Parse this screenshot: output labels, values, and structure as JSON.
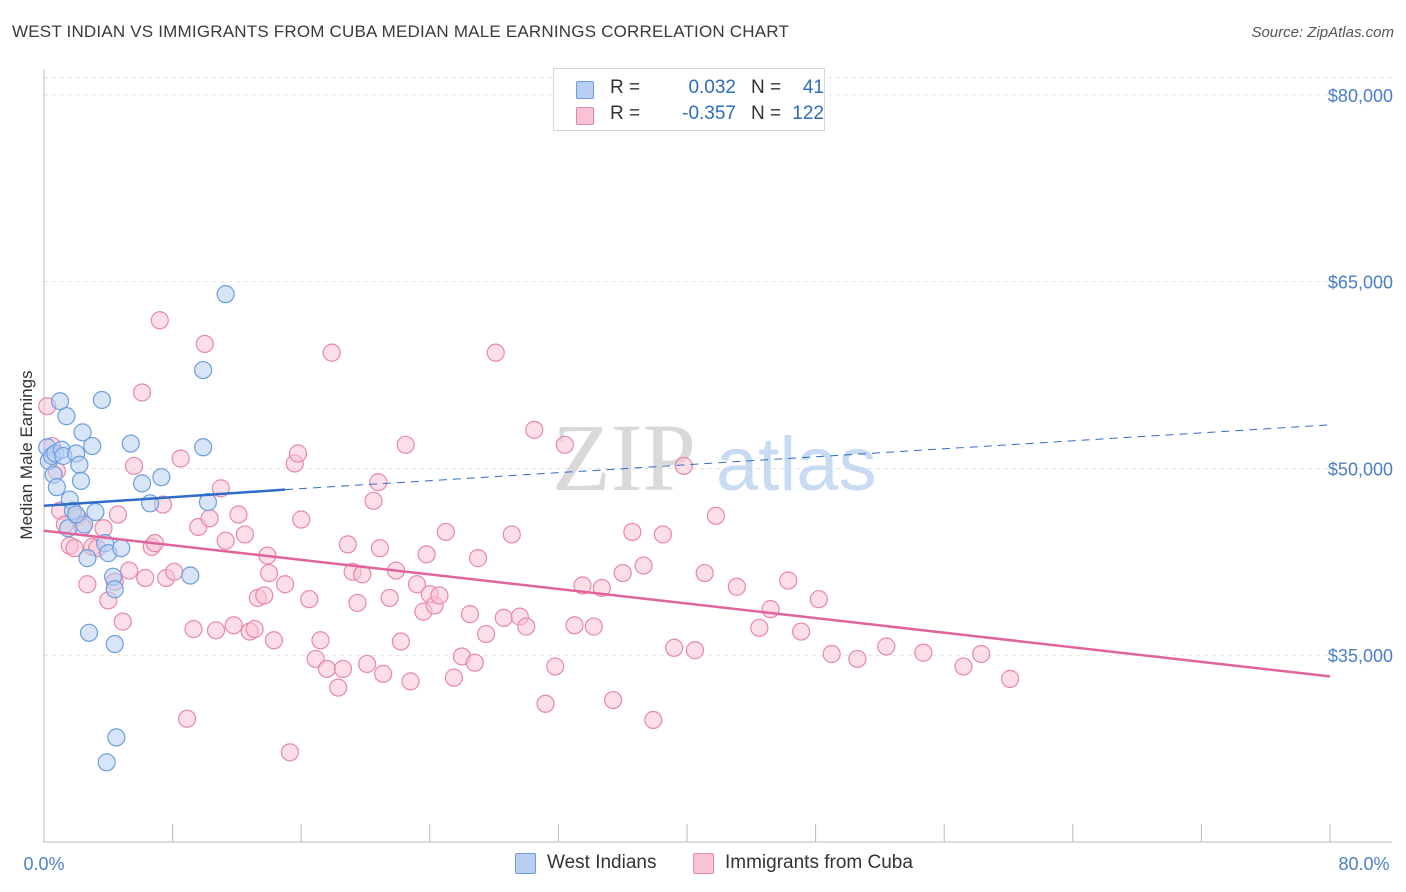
{
  "title": "WEST INDIAN VS IMMIGRANTS FROM CUBA MEDIAN MALE EARNINGS CORRELATION CHART",
  "source": "Source: ZipAtlas.com",
  "watermark": {
    "zip": "ZIP",
    "atlas": "atlas"
  },
  "colors": {
    "blue_fill": "#b7d0f1",
    "blue_stroke": "#6c9ee0",
    "blue_line": "#2f6cc8",
    "pink_fill": "#f8c3d3",
    "pink_stroke": "#e888a8",
    "pink_line": "#e0649a",
    "tick_text": "#4a7fc8",
    "grid": "#e3e3e3"
  },
  "legend": [
    {
      "r_label": "R =",
      "r_value": "0.032",
      "n_label": "N =",
      "n_value": "41"
    },
    {
      "r_label": "R =",
      "r_value": "-0.357",
      "n_label": "N =",
      "n_value": "122"
    }
  ],
  "series_labels": [
    "West Indians",
    "Immigrants from Cuba"
  ],
  "chart_data": {
    "type": "scatter",
    "title": "WEST INDIAN VS IMMIGRANTS FROM CUBA MEDIAN MALE EARNINGS CORRELATION CHART",
    "xlabel": "",
    "ylabel": "Median Male Earnings",
    "xlim": [
      0,
      80
    ],
    "ylim": [
      20000,
      82000
    ],
    "x_tick_labels": [
      "0.0%",
      "80.0%"
    ],
    "y_ticks": [
      35000,
      50000,
      65000,
      80000
    ],
    "y_tick_labels": [
      "$35,000",
      "$50,000",
      "$65,000",
      "$80,000"
    ],
    "grid": true,
    "series": [
      {
        "name": "West Indians",
        "r": 0.032,
        "n": 41,
        "trend": {
          "solid": [
            [
              0,
              47000
            ],
            [
              15,
              48300
            ]
          ],
          "dashed": [
            [
              15,
              48300
            ],
            [
              80,
              53500
            ]
          ]
        },
        "points": [
          [
            0.2,
            51700
          ],
          [
            0.3,
            50600
          ],
          [
            0.5,
            51000
          ],
          [
            0.6,
            49500
          ],
          [
            0.7,
            51200
          ],
          [
            0.8,
            48500
          ],
          [
            1.0,
            55400
          ],
          [
            1.1,
            51500
          ],
          [
            1.2,
            51000
          ],
          [
            1.4,
            54200
          ],
          [
            1.5,
            45200
          ],
          [
            1.6,
            47500
          ],
          [
            1.8,
            46600
          ],
          [
            2.0,
            51200
          ],
          [
            2.2,
            50300
          ],
          [
            2.3,
            49000
          ],
          [
            2.4,
            52900
          ],
          [
            2.5,
            45500
          ],
          [
            2.7,
            42800
          ],
          [
            2.8,
            36800
          ],
          [
            3.0,
            51800
          ],
          [
            3.2,
            46500
          ],
          [
            3.6,
            55500
          ],
          [
            3.8,
            44000
          ],
          [
            4.0,
            43200
          ],
          [
            4.3,
            41300
          ],
          [
            4.4,
            40300
          ],
          [
            4.8,
            43600
          ],
          [
            4.4,
            35900
          ],
          [
            5.4,
            52000
          ],
          [
            6.1,
            48800
          ],
          [
            4.5,
            28400
          ],
          [
            3.9,
            26400
          ],
          [
            7.3,
            49300
          ],
          [
            9.1,
            41400
          ],
          [
            9.9,
            51700
          ],
          [
            10.2,
            47300
          ],
          [
            9.9,
            57900
          ],
          [
            11.3,
            64000
          ],
          [
            6.6,
            47200
          ],
          [
            2.0,
            46300
          ]
        ]
      },
      {
        "name": "Immigrants from Cuba",
        "r": -0.357,
        "n": 122,
        "trend": {
          "solid": [
            [
              0,
              45000
            ],
            [
              80,
              33300
            ]
          ]
        },
        "points": [
          [
            0.2,
            55000
          ],
          [
            0.5,
            51800
          ],
          [
            0.8,
            49800
          ],
          [
            1.0,
            46600
          ],
          [
            1.3,
            45500
          ],
          [
            1.6,
            43800
          ],
          [
            1.9,
            43600
          ],
          [
            2.1,
            46100
          ],
          [
            2.4,
            45300
          ],
          [
            2.7,
            40700
          ],
          [
            3.0,
            43700
          ],
          [
            3.3,
            43600
          ],
          [
            3.7,
            45200
          ],
          [
            4.0,
            39400
          ],
          [
            4.4,
            40900
          ],
          [
            4.6,
            46300
          ],
          [
            4.9,
            37700
          ],
          [
            5.3,
            41800
          ],
          [
            5.6,
            50200
          ],
          [
            6.1,
            56100
          ],
          [
            6.3,
            41200
          ],
          [
            6.7,
            43700
          ],
          [
            6.9,
            44000
          ],
          [
            7.2,
            61900
          ],
          [
            7.6,
            41200
          ],
          [
            8.1,
            41700
          ],
          [
            8.5,
            50800
          ],
          [
            8.9,
            29900
          ],
          [
            9.3,
            37100
          ],
          [
            9.6,
            45300
          ],
          [
            10.0,
            60000
          ],
          [
            10.3,
            46000
          ],
          [
            10.7,
            37000
          ],
          [
            11.0,
            48400
          ],
          [
            11.3,
            44200
          ],
          [
            11.8,
            37400
          ],
          [
            12.1,
            46300
          ],
          [
            12.5,
            44700
          ],
          [
            12.8,
            36900
          ],
          [
            13.1,
            37100
          ],
          [
            13.3,
            39600
          ],
          [
            13.7,
            39800
          ],
          [
            14.0,
            41600
          ],
          [
            14.3,
            36200
          ],
          [
            15.0,
            40700
          ],
          [
            15.3,
            27200
          ],
          [
            15.6,
            50400
          ],
          [
            15.8,
            51200
          ],
          [
            16.0,
            45900
          ],
          [
            16.5,
            39500
          ],
          [
            16.9,
            34700
          ],
          [
            17.2,
            36200
          ],
          [
            17.6,
            33900
          ],
          [
            17.9,
            59300
          ],
          [
            18.3,
            32400
          ],
          [
            18.6,
            33900
          ],
          [
            18.9,
            43900
          ],
          [
            19.2,
            41700
          ],
          [
            19.5,
            39200
          ],
          [
            19.8,
            41500
          ],
          [
            20.1,
            34300
          ],
          [
            20.5,
            47400
          ],
          [
            20.8,
            48900
          ],
          [
            21.1,
            33500
          ],
          [
            21.5,
            39600
          ],
          [
            21.9,
            41800
          ],
          [
            22.2,
            36100
          ],
          [
            22.5,
            51900
          ],
          [
            22.8,
            32900
          ],
          [
            23.2,
            40700
          ],
          [
            23.6,
            38500
          ],
          [
            24.0,
            39900
          ],
          [
            24.3,
            39000
          ],
          [
            24.6,
            39800
          ],
          [
            25.0,
            44900
          ],
          [
            25.5,
            33200
          ],
          [
            26.0,
            34900
          ],
          [
            26.5,
            38300
          ],
          [
            27.0,
            42800
          ],
          [
            27.5,
            36700
          ],
          [
            28.1,
            59300
          ],
          [
            28.6,
            38000
          ],
          [
            29.1,
            44700
          ],
          [
            29.6,
            38100
          ],
          [
            30.0,
            37300
          ],
          [
            30.5,
            53100
          ],
          [
            31.2,
            31100
          ],
          [
            31.8,
            34100
          ],
          [
            32.4,
            51900
          ],
          [
            33.0,
            37400
          ],
          [
            33.5,
            40600
          ],
          [
            34.2,
            37300
          ],
          [
            34.7,
            40400
          ],
          [
            35.4,
            31400
          ],
          [
            36.0,
            41600
          ],
          [
            36.6,
            44900
          ],
          [
            37.3,
            42200
          ],
          [
            37.9,
            29800
          ],
          [
            38.5,
            44700
          ],
          [
            39.2,
            35600
          ],
          [
            39.8,
            50200
          ],
          [
            40.5,
            35400
          ],
          [
            41.1,
            41600
          ],
          [
            41.8,
            46200
          ],
          [
            43.1,
            40500
          ],
          [
            44.5,
            37200
          ],
          [
            45.2,
            38700
          ],
          [
            46.3,
            41000
          ],
          [
            47.1,
            36900
          ],
          [
            48.2,
            39500
          ],
          [
            49.0,
            35100
          ],
          [
            50.6,
            34700
          ],
          [
            52.4,
            35700
          ],
          [
            54.7,
            35200
          ],
          [
            57.2,
            34100
          ],
          [
            58.3,
            35100
          ],
          [
            60.1,
            33100
          ],
          [
            23.8,
            43100
          ],
          [
            26.8,
            34400
          ],
          [
            13.9,
            43000
          ],
          [
            7.4,
            47100
          ],
          [
            20.9,
            43600
          ]
        ]
      }
    ]
  }
}
